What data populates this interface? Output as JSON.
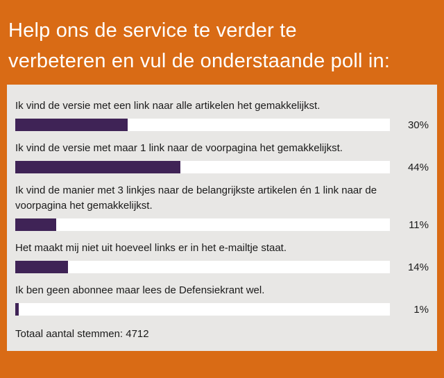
{
  "header": {
    "title": "Help ons de service te verder te verbeteren en vul de onderstaande poll in:",
    "lines": [
      "Help ons de service te verder te",
      "verbeteren en vul de onderstaande poll in:"
    ]
  },
  "poll": {
    "items": [
      {
        "label": "Ik vind de versie met een link naar alle artikelen het gemakkelijkst.",
        "value": 30,
        "percent_label": "30%"
      },
      {
        "label": "Ik vind de versie met maar 1 link naar de voorpagina het gemakkelijkst.",
        "value": 44,
        "percent_label": "44%"
      },
      {
        "label": "Ik vind de manier met 3 linkjes naar de belangrijkste artikelen én 1 link naar de voorpagina het gemakkelijkst.",
        "value": 11,
        "percent_label": "11%"
      },
      {
        "label": "Het maakt mij niet uit hoeveel links er in het e-mailtje staat.",
        "value": 14,
        "percent_label": "14%"
      },
      {
        "label": "Ik ben geen abonnee maar lees de Defensiekrant wel.",
        "value": 1,
        "percent_label": "1%"
      }
    ],
    "total_label": "Totaal aantal stemmen: 4712"
  },
  "chart_data": {
    "type": "bar",
    "orientation": "horizontal",
    "title": "Help ons de service te verder te verbeteren en vul de onderstaande poll in:",
    "categories": [
      "Ik vind de versie met een link naar alle artikelen het gemakkelijkst.",
      "Ik vind de versie met maar 1 link naar de voorpagina het gemakkelijkst.",
      "Ik vind de manier met 3 linkjes naar de belangrijkste artikelen én 1 link naar de voorpagina het gemakkelijkst.",
      "Het maakt mij niet uit hoeveel links er in het e-mailtje staat.",
      "Ik ben geen abonnee maar lees de Defensiekrant wel."
    ],
    "values": [
      30,
      44,
      11,
      14,
      1
    ],
    "value_labels": [
      "30%",
      "44%",
      "11%",
      "14%",
      "1%"
    ],
    "xlabel": "",
    "ylabel": "",
    "xlim": [
      0,
      100
    ],
    "grid": false,
    "legend": false,
    "total_votes": 4712
  },
  "colors": {
    "bg": "#D96B15",
    "panel": "#E8E7E5",
    "track": "#FFFFFF",
    "fill": "#3F2356",
    "heading_text": "#FFFFFF",
    "body_text": "#1A1A1A"
  }
}
